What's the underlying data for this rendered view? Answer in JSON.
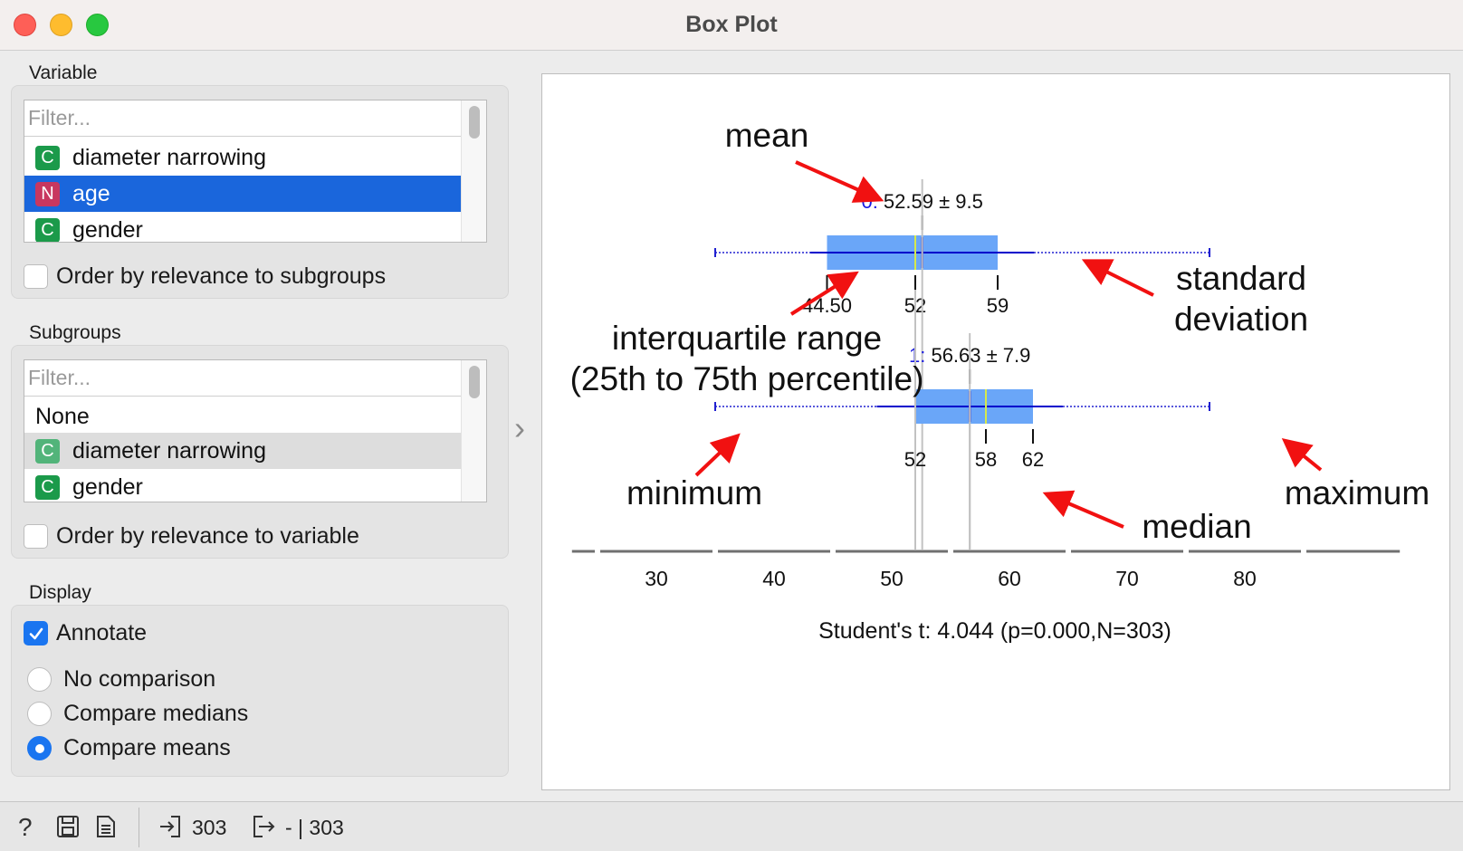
{
  "window": {
    "title": "Box Plot"
  },
  "variable": {
    "label": "Variable",
    "filter_placeholder": "Filter...",
    "items": [
      {
        "type": "C",
        "label": "diameter narrowing"
      },
      {
        "type": "N",
        "label": "age"
      },
      {
        "type": "C",
        "label": "gender"
      }
    ],
    "selected": "age",
    "order_label": "Order by relevance to subgroups",
    "order_checked": false
  },
  "subgroups": {
    "label": "Subgroups",
    "filter_placeholder": "Filter...",
    "none_label": "None",
    "items": [
      {
        "type": "C",
        "label": "diameter narrowing"
      },
      {
        "type": "C",
        "label": "gender"
      }
    ],
    "hovered": "diameter narrowing",
    "order_label": "Order by relevance to variable",
    "order_checked": false
  },
  "display": {
    "label": "Display",
    "annotate_label": "Annotate",
    "annotate_checked": true,
    "options": [
      "No comparison",
      "Compare medians",
      "Compare means"
    ],
    "selected_option": "Compare means"
  },
  "status": {
    "input_count": "303",
    "output_count": "- | 303"
  },
  "chart_data": {
    "type": "box",
    "xaxis": {
      "ticks": [
        30,
        40,
        50,
        60,
        70,
        80
      ],
      "range": [
        22,
        94
      ]
    },
    "boxes": [
      {
        "group": "0:",
        "mean": 52.59,
        "sd": 9.5,
        "min": 35,
        "q1": 44.5,
        "median": 52,
        "q3": 59,
        "max": 77,
        "stat_label": "52.59 ± 9.5",
        "tick_labels": [
          "44.50",
          "52",
          "59"
        ]
      },
      {
        "group": "1:",
        "mean": 56.63,
        "sd": 7.9,
        "min": 35,
        "q1": 52,
        "median": 58,
        "q3": 62,
        "max": 77,
        "stat_label": "56.63 ± 7.9",
        "tick_labels": [
          "52",
          "58",
          "62"
        ]
      }
    ],
    "statistic": "Student's t: 4.044 (p=0.000,N=303)",
    "annotations": {
      "mean": "mean",
      "std1": "standard",
      "std2": "deviation",
      "iqr1": "interquartile range",
      "iqr2": "(25th to 75th percentile)",
      "minimum": "minimum",
      "median": "median",
      "maximum": "maximum"
    },
    "colors": {
      "box": "#6aa6f8",
      "line": "#0000cc",
      "median": "#d6e94a",
      "arrow": "#f11111"
    }
  }
}
